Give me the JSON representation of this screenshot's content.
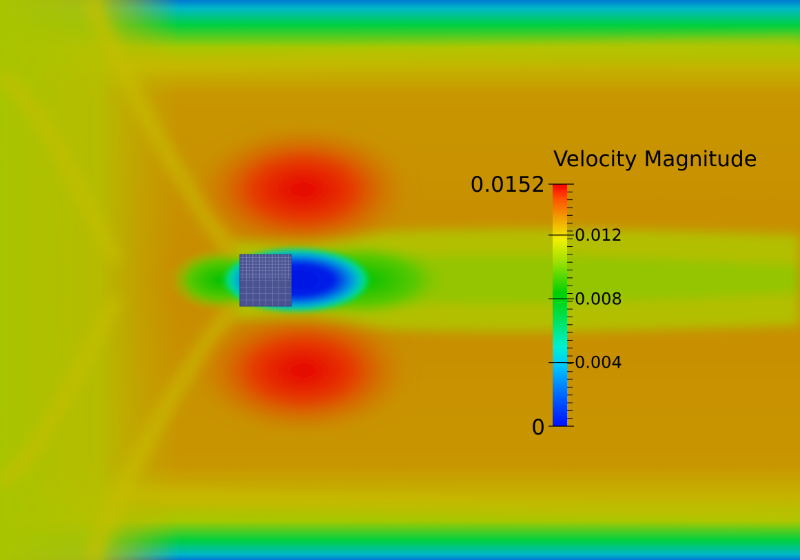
{
  "chart_data": {
    "type": "heatmap",
    "colorbar": {
      "title": "Velocity Magnitude",
      "min_label": "0",
      "max_label": "0.0152",
      "range": [
        0,
        0.0152
      ],
      "ticks": [
        {
          "value": 0.004,
          "label": "0.004"
        },
        {
          "value": 0.008,
          "label": "0.008"
        },
        {
          "value": 0.012,
          "label": "0.012"
        }
      ],
      "minor_tick_count": 31,
      "colors": [
        "#0010ff",
        "#00b0ff",
        "#00f0f0",
        "#00e060",
        "#00d000",
        "#90e000",
        "#f0f000",
        "#f0a000",
        "#ff5000",
        "#ff0000"
      ]
    }
  },
  "colors": {
    "background_orange": "#c48a00",
    "freestream_yellow_green": "#a6c200",
    "wall_cyan": "#00c0c0",
    "obstacle_mesh": "#4a5290"
  }
}
